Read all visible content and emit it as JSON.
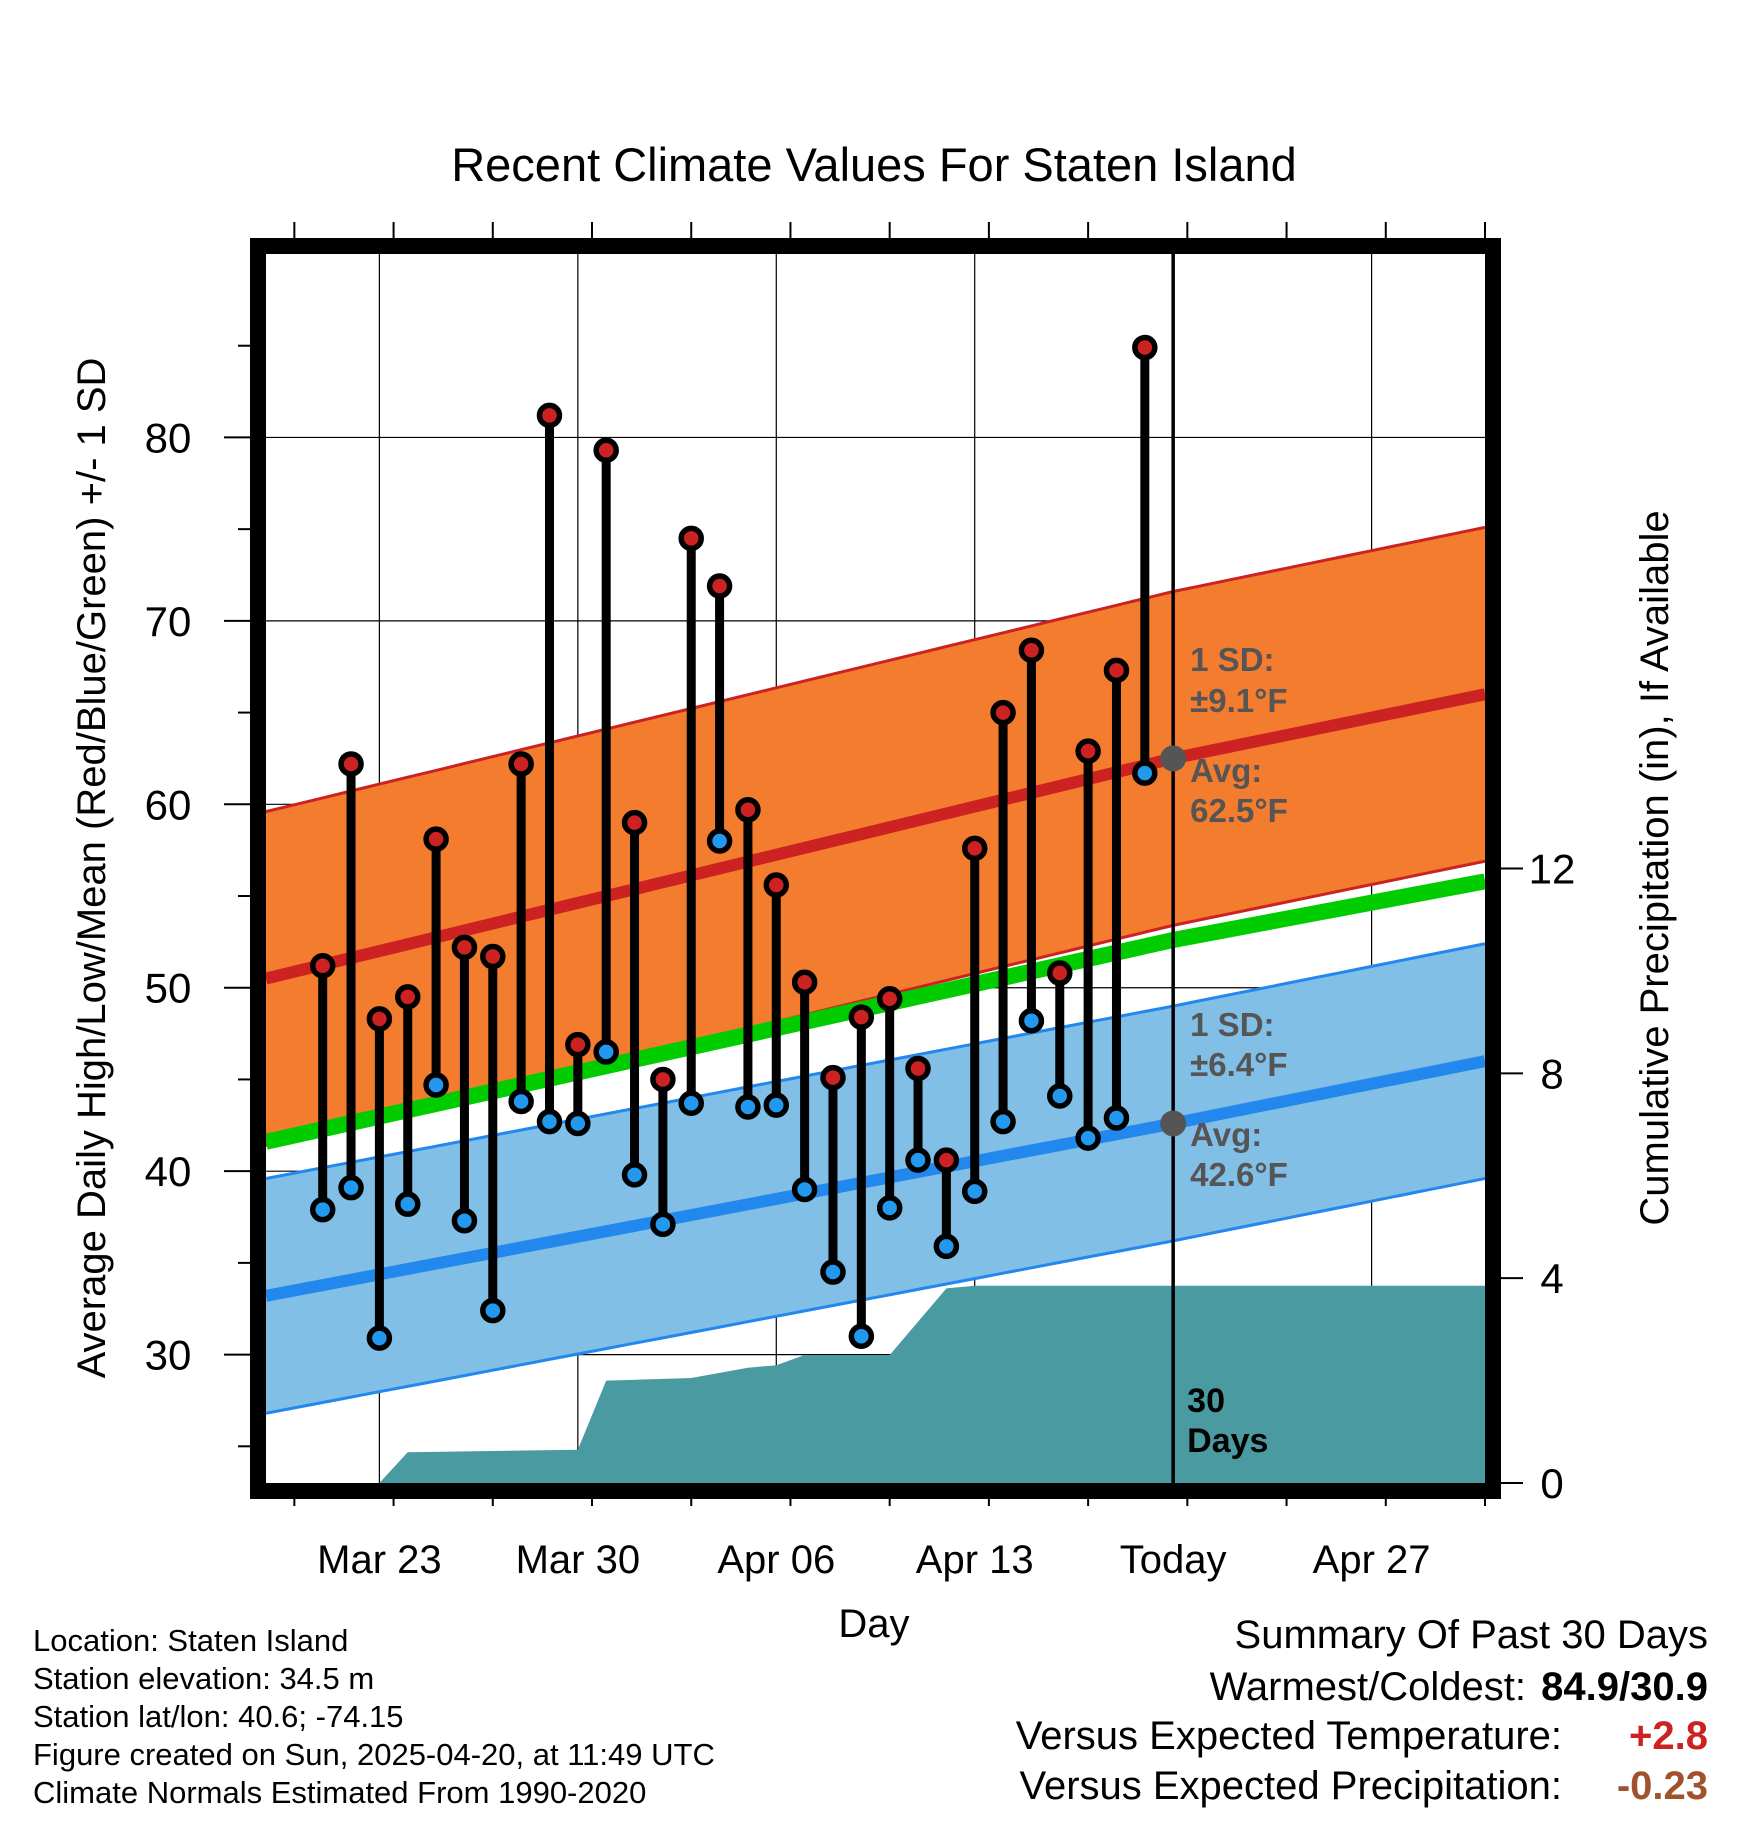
{
  "chart_data": {
    "type": "line",
    "title": "Recent Climate Values For Staten Island",
    "xlabel": "Day",
    "ylabel": "Average Daily High/Low/Mean (Red/Blue/Green) +/- 1 SD",
    "y2label": "Cumulative Precipitation (in), If Available",
    "x_range": [
      "2025-03-19",
      "2025-05-01"
    ],
    "ylim": [
      23,
      90
    ],
    "y2lim": [
      0,
      24
    ],
    "x_ticks": [
      {
        "date": "2025-03-23",
        "label": "Mar 23"
      },
      {
        "date": "2025-03-30",
        "label": "Mar 30"
      },
      {
        "date": "2025-04-06",
        "label": "Apr 06"
      },
      {
        "date": "2025-04-13",
        "label": "Apr 13"
      },
      {
        "date": "2025-04-20",
        "label": "Today"
      },
      {
        "date": "2025-04-27",
        "label": "Apr 27"
      }
    ],
    "y_ticks": [
      30,
      40,
      50,
      60,
      70,
      80
    ],
    "y2_ticks": [
      0,
      4,
      8,
      12
    ],
    "grid": true,
    "today": "2025-04-20",
    "today_label": "30 Days",
    "series": [
      {
        "name": "High",
        "color": "#cc2222",
        "points": [
          {
            "date": "2025-03-21",
            "value": 51.2
          },
          {
            "date": "2025-03-22",
            "value": 62.2
          },
          {
            "date": "2025-03-23",
            "value": 48.3
          },
          {
            "date": "2025-03-24",
            "value": 49.5
          },
          {
            "date": "2025-03-25",
            "value": 58.1
          },
          {
            "date": "2025-03-26",
            "value": 52.2
          },
          {
            "date": "2025-03-27",
            "value": 51.7
          },
          {
            "date": "2025-03-28",
            "value": 62.2
          },
          {
            "date": "2025-03-29",
            "value": 81.2
          },
          {
            "date": "2025-03-30",
            "value": 46.9
          },
          {
            "date": "2025-03-31",
            "value": 79.3
          },
          {
            "date": "2025-04-01",
            "value": 59.0
          },
          {
            "date": "2025-04-02",
            "value": 45.0
          },
          {
            "date": "2025-04-03",
            "value": 74.5
          },
          {
            "date": "2025-04-04",
            "value": 71.9
          },
          {
            "date": "2025-04-05",
            "value": 59.7
          },
          {
            "date": "2025-04-06",
            "value": 55.6
          },
          {
            "date": "2025-04-07",
            "value": 50.3
          },
          {
            "date": "2025-04-08",
            "value": 45.1
          },
          {
            "date": "2025-04-09",
            "value": 48.4
          },
          {
            "date": "2025-04-10",
            "value": 49.4
          },
          {
            "date": "2025-04-11",
            "value": 45.6
          },
          {
            "date": "2025-04-12",
            "value": 40.6
          },
          {
            "date": "2025-04-13",
            "value": 57.6
          },
          {
            "date": "2025-04-14",
            "value": 65.0
          },
          {
            "date": "2025-04-15",
            "value": 68.4
          },
          {
            "date": "2025-04-16",
            "value": 50.8
          },
          {
            "date": "2025-04-17",
            "value": 62.9
          },
          {
            "date": "2025-04-18",
            "value": 67.3
          },
          {
            "date": "2025-04-19",
            "value": 84.9
          }
        ]
      },
      {
        "name": "Low",
        "color": "#2299ee",
        "points": [
          {
            "date": "2025-03-21",
            "value": 37.9
          },
          {
            "date": "2025-03-22",
            "value": 39.1
          },
          {
            "date": "2025-03-23",
            "value": 30.9
          },
          {
            "date": "2025-03-24",
            "value": 38.2
          },
          {
            "date": "2025-03-25",
            "value": 44.7
          },
          {
            "date": "2025-03-26",
            "value": 37.3
          },
          {
            "date": "2025-03-27",
            "value": 32.4
          },
          {
            "date": "2025-03-28",
            "value": 43.8
          },
          {
            "date": "2025-03-29",
            "value": 42.7
          },
          {
            "date": "2025-03-30",
            "value": 42.6
          },
          {
            "date": "2025-03-31",
            "value": 46.5
          },
          {
            "date": "2025-04-01",
            "value": 39.8
          },
          {
            "date": "2025-04-02",
            "value": 37.1
          },
          {
            "date": "2025-04-03",
            "value": 43.7
          },
          {
            "date": "2025-04-04",
            "value": 58.0
          },
          {
            "date": "2025-04-05",
            "value": 43.5
          },
          {
            "date": "2025-04-06",
            "value": 43.6
          },
          {
            "date": "2025-04-07",
            "value": 39.0
          },
          {
            "date": "2025-04-08",
            "value": 34.5
          },
          {
            "date": "2025-04-09",
            "value": 31.0
          },
          {
            "date": "2025-04-10",
            "value": 38.0
          },
          {
            "date": "2025-04-11",
            "value": 40.6
          },
          {
            "date": "2025-04-12",
            "value": 35.9
          },
          {
            "date": "2025-04-13",
            "value": 38.9
          },
          {
            "date": "2025-04-14",
            "value": 42.7
          },
          {
            "date": "2025-04-15",
            "value": 48.2
          },
          {
            "date": "2025-04-16",
            "value": 44.1
          },
          {
            "date": "2025-04-17",
            "value": 41.8
          },
          {
            "date": "2025-04-18",
            "value": 42.9
          },
          {
            "date": "2025-04-19",
            "value": 61.7
          }
        ]
      },
      {
        "name": "Normal High",
        "color": "#cc2222",
        "band_color": "#f47c2e",
        "sd": 9.1,
        "points": [
          {
            "date": "2025-03-19",
            "value": 50.5
          },
          {
            "date": "2025-04-20",
            "value": 62.5
          },
          {
            "date": "2025-05-01",
            "value": 66.0
          }
        ]
      },
      {
        "name": "Normal Low",
        "color": "#2288ee",
        "band_color": "#82bfe6",
        "sd": 6.4,
        "points": [
          {
            "date": "2025-03-19",
            "value": 33.2
          },
          {
            "date": "2025-04-20",
            "value": 42.6
          },
          {
            "date": "2025-05-01",
            "value": 46.0
          }
        ]
      },
      {
        "name": "Normal Mean",
        "color": "#00cc00",
        "points": [
          {
            "date": "2025-03-19",
            "value": 41.6
          },
          {
            "date": "2025-04-20",
            "value": 52.6
          },
          {
            "date": "2025-05-01",
            "value": 55.8
          }
        ]
      },
      {
        "name": "Cumulative Precipitation",
        "axis": "y2",
        "color": "#4a9aa2",
        "points": [
          {
            "date": "2025-03-22",
            "value": 0.0
          },
          {
            "date": "2025-03-23",
            "value": 0.0
          },
          {
            "date": "2025-03-24",
            "value": 0.6
          },
          {
            "date": "2025-03-30",
            "value": 0.65
          },
          {
            "date": "2025-03-31",
            "value": 2.0
          },
          {
            "date": "2025-04-03",
            "value": 2.05
          },
          {
            "date": "2025-04-05",
            "value": 2.25
          },
          {
            "date": "2025-04-06",
            "value": 2.3
          },
          {
            "date": "2025-04-07",
            "value": 2.5
          },
          {
            "date": "2025-04-10",
            "value": 2.5
          },
          {
            "date": "2025-04-12",
            "value": 3.8
          },
          {
            "date": "2025-04-13",
            "value": 3.85
          },
          {
            "date": "2025-04-20",
            "value": 3.85
          },
          {
            "date": "2025-05-01",
            "value": 3.85
          }
        ]
      }
    ],
    "annotations": {
      "high_sd_label": "1 SD:",
      "high_sd_value": "±9.1°F",
      "high_avg_label": "Avg:",
      "high_avg_value": "62.5°F",
      "low_sd_label": "1 SD:",
      "low_sd_value": "±6.4°F",
      "low_avg_label": "Avg:",
      "low_avg_value": "42.6°F",
      "today_avg_high": 62.5,
      "today_avg_low": 42.6
    }
  },
  "station": {
    "location": "Location: Staten Island",
    "elevation": "Station elevation: 34.5 m",
    "latlon": "Station lat/lon: 40.6; -74.15",
    "created": "Figure created on Sun, 2025-04-20, at 11:49 UTC",
    "normals": "Climate Normals Estimated From 1990-2020"
  },
  "summary": {
    "title": "Summary Of Past 30 Days",
    "warm_cold_label": "Warmest/Coldest:",
    "warm_cold_value": "84.9/30.9",
    "temp_label": "Versus Expected Temperature:",
    "temp_value": "+2.8",
    "temp_color": "#cc2222",
    "precip_label": "Versus Expected Precipitation:",
    "precip_value": "-0.23",
    "precip_color": "#a0522d"
  }
}
